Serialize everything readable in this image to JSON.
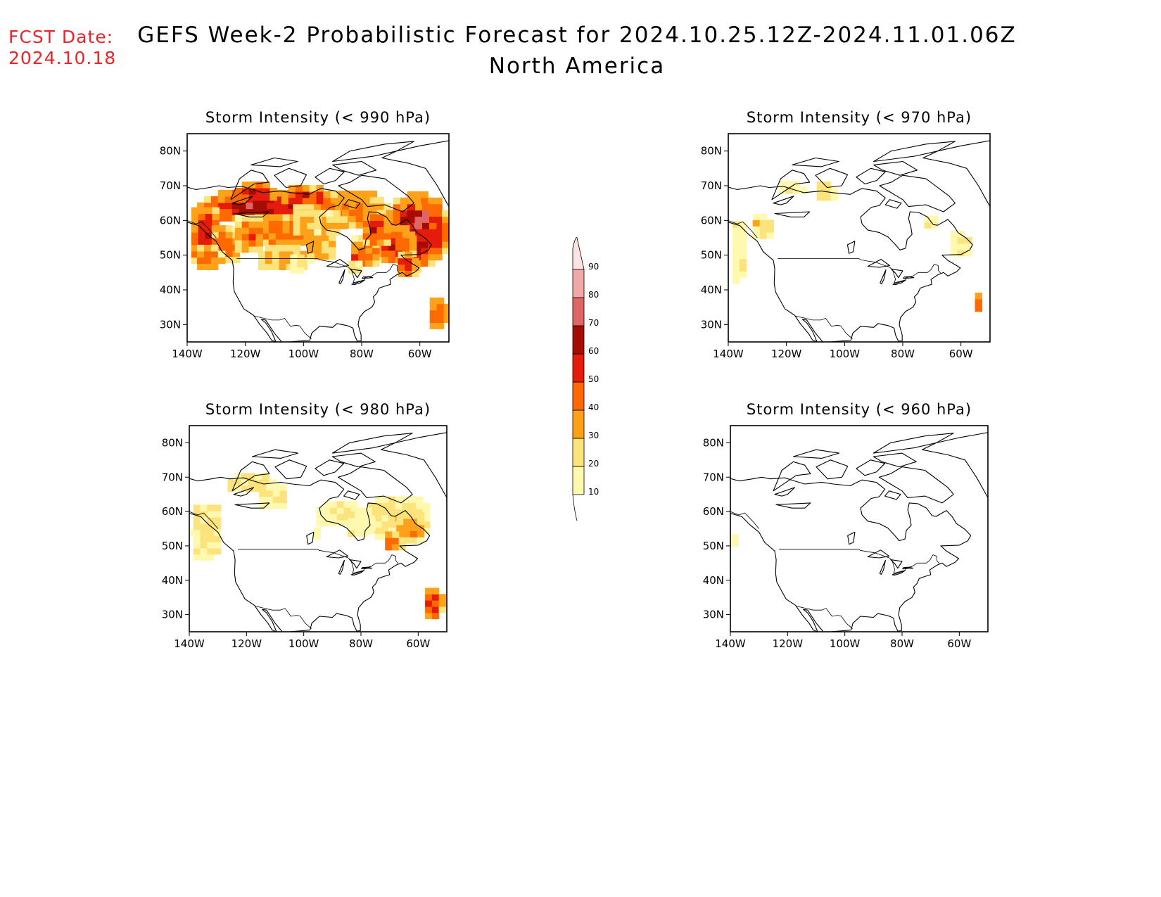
{
  "header": {
    "fcst_label": "FCST Date:",
    "fcst_date": "2024.10.18",
    "title": "GEFS Week-2 Probabilistic Forecast for 2024.10.25.12Z-2024.11.01.06Z",
    "subtitle": "North America"
  },
  "map": {
    "lat_ticks": [
      "80N",
      "70N",
      "60N",
      "50N",
      "40N",
      "30N"
    ],
    "lon_ticks": [
      "140W",
      "120W",
      "100W",
      "80W",
      "60W"
    ],
    "panels": [
      {
        "id": "p990",
        "title": "Storm Intensity (< 990 hPa)"
      },
      {
        "id": "p970",
        "title": "Storm Intensity (< 970 hPa)"
      },
      {
        "id": "p980",
        "title": "Storm Intensity (< 980 hPa)"
      },
      {
        "id": "p960",
        "title": "Storm Intensity (< 960 hPa)"
      }
    ]
  },
  "colorbar": {
    "levels": [
      "10",
      "20",
      "30",
      "40",
      "50",
      "60",
      "70",
      "80",
      "90"
    ],
    "colors": [
      "#fff9b0",
      "#fde37c",
      "#ffa21a",
      "#ff6a00",
      "#e51b0b",
      "#a50d04",
      "#e06565",
      "#f3a8a8",
      "#fde3e3"
    ]
  }
}
